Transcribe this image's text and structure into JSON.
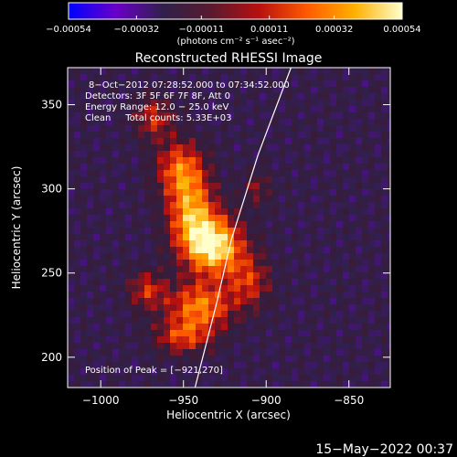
{
  "chart_data": {
    "type": "heatmap",
    "title": "Reconstructed RHESSI Image",
    "xlabel": "Heliocentric X (arcsec)",
    "ylabel": "Heliocentric Y (arcsec)",
    "xlim": [
      -1020,
      -825
    ],
    "ylim": [
      182,
      372
    ],
    "x_ticks": [
      -1000,
      -950,
      -900,
      -850
    ],
    "x_tick_labels": [
      "−1000",
      "−950",
      "−900",
      "−850"
    ],
    "y_ticks": [
      200,
      250,
      300,
      350
    ],
    "y_tick_labels": [
      "200",
      "250",
      "300",
      "350"
    ],
    "colorbar": {
      "range": [
        -0.00054,
        0.00054
      ],
      "ticks": [
        -0.00054,
        -0.00032,
        -0.00011,
        0.00011,
        0.00032,
        0.00054
      ],
      "tick_labels": [
        "−0.00054",
        "−0.00032",
        "−0.00011",
        "0.00011",
        "0.00032",
        "0.00054"
      ],
      "units_label": "(photons cm⁻² s⁻¹ asec⁻²)",
      "colors": [
        "#0000ff",
        "#6a00c8",
        "#30204a",
        "#5a1a2e",
        "#b81010",
        "#ff5a00",
        "#ffb000",
        "#ffffcc"
      ]
    },
    "annotations": [
      "8−Oct−2012 07:28:52.000 to 07:34:52.000",
      "Detectors: 3F 5F 6F 7F 8F, Att 0",
      "Energy Range: 12.0 − 25.0 keV",
      "Clean     Total counts: 5.33E+03",
      "Position of Peak = [−921,270]"
    ],
    "peak": {
      "x": -921,
      "y": 270
    },
    "limb_curve": [
      [
        -943,
        182
      ],
      [
        -930,
        232
      ],
      [
        -921,
        270
      ],
      [
        -905,
        320
      ],
      [
        -885,
        372
      ]
    ],
    "sources": [
      {
        "x": -931,
        "y": 266,
        "sx": 12,
        "sy": 12,
        "a": 1.0
      },
      {
        "x": -945,
        "y": 285,
        "sx": 10,
        "sy": 16,
        "a": 0.75
      },
      {
        "x": -952,
        "y": 312,
        "sx": 10,
        "sy": 12,
        "a": 0.6
      },
      {
        "x": -968,
        "y": 342,
        "sx": 8,
        "sy": 9,
        "a": 0.45
      },
      {
        "x": -940,
        "y": 230,
        "sx": 14,
        "sy": 10,
        "a": 0.7
      },
      {
        "x": -950,
        "y": 212,
        "sx": 12,
        "sy": 7,
        "a": 0.5
      },
      {
        "x": -972,
        "y": 240,
        "sx": 8,
        "sy": 8,
        "a": 0.45
      },
      {
        "x": -910,
        "y": 245,
        "sx": 9,
        "sy": 11,
        "a": 0.45
      },
      {
        "x": -905,
        "y": 300,
        "sx": 6,
        "sy": 7,
        "a": 0.3
      }
    ]
  },
  "footer": {
    "timestamp": "15−May−2022 00:37"
  }
}
